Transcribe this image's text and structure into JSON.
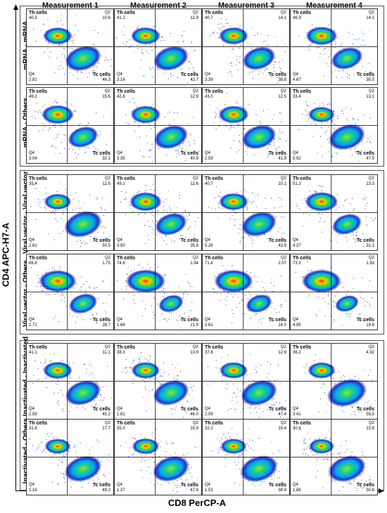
{
  "axes": {
    "y_title": "CD4 APC-H7-A",
    "x_title": "CD8 PerCP-A"
  },
  "columns": [
    "Measurement 1",
    "Measurement 2",
    "Measurement 3",
    "Measurement 4"
  ],
  "quadrant_names": {
    "th": "Th cells",
    "tc": "Tc cells",
    "q2": "Q2",
    "q4": "Q4"
  },
  "rows": [
    {
      "label": "mRNA - mRNA",
      "panels": [
        {
          "th": "40.3",
          "q2": "10.6",
          "q4": "2.81",
          "tc": "46.3"
        },
        {
          "th": "41.2",
          "q2": "11.9",
          "q4": "3.16",
          "tc": "43.7"
        },
        {
          "th": "40.7",
          "q2": "14.1",
          "q4": "3.39",
          "tc": "38.8"
        },
        {
          "th": "46.9",
          "q2": "14.1",
          "q4": "4.67",
          "tc": "35.5"
        }
      ]
    },
    {
      "label": "mRNA - Others",
      "panels": [
        {
          "th": "49.2",
          "q2": "15.6",
          "q4": "3.04",
          "tc": "32.1"
        },
        {
          "th": "42.8",
          "q2": "12.9",
          "q4": "3.35",
          "tc": "40.9"
        },
        {
          "th": "43.0",
          "q2": "12.5",
          "q4": "2.59",
          "tc": "41.9"
        },
        {
          "th": "33.4",
          "q2": "13.1",
          "q4": "5.92",
          "tc": "47.5"
        }
      ]
    },
    {
      "label": "Viral vector - Viral vector",
      "panels": [
        {
          "th": "35.4",
          "q2": "11.5",
          "q4": "2.61",
          "tc": "50.5"
        },
        {
          "th": "49.1",
          "q2": "11.6",
          "q4": "3.50",
          "tc": "35.8"
        },
        {
          "th": "40.7",
          "q2": "10.1",
          "q4": "5.26",
          "tc": "43.9"
        },
        {
          "th": "51.2",
          "q2": "13.3",
          "q4": "4.37",
          "tc": "31.1"
        }
      ]
    },
    {
      "label": "Viral vector - Others",
      "panels": [
        {
          "th": "66.8",
          "q2": "1.75",
          "q4": "2.71",
          "tc": "28.7"
        },
        {
          "th": "74.6",
          "q2": "1.94",
          "q4": "1.66",
          "tc": "21.9"
        },
        {
          "th": "71.4",
          "q2": "2.07",
          "q4": "2.61",
          "tc": "24.0"
        },
        {
          "th": "73.3",
          "q2": "1.93",
          "q4": "4.95",
          "tc": "19.8"
        }
      ]
    },
    {
      "label": "Inactivated - Inactivated",
      "panels": [
        {
          "th": "41.1",
          "q2": "11.1",
          "q4": "2.59",
          "tc": "45.2"
        },
        {
          "th": "38.3",
          "q2": "13.9",
          "q4": "1.81",
          "tc": "46.0"
        },
        {
          "th": "37.6",
          "q2": "12.9",
          "q4": "2.09",
          "tc": "47.4"
        },
        {
          "th": "36.2",
          "q2": "4.92",
          "q4": "3.41",
          "tc": "55.5"
        }
      ]
    },
    {
      "label": "Inactivated - Others",
      "panels": [
        {
          "th": "31.8",
          "q2": "17.7",
          "q4": "1.16",
          "tc": "49.2"
        },
        {
          "th": "35.0",
          "q2": "15.9",
          "q4": "1.37",
          "tc": "47.8"
        },
        {
          "th": "32.2",
          "q2": "15.4",
          "q4": "1.53",
          "tc": "50.9"
        },
        {
          "th": "30.6",
          "q2": "13.8",
          "q4": "1.86",
          "tc": "50.6"
        }
      ]
    }
  ]
}
